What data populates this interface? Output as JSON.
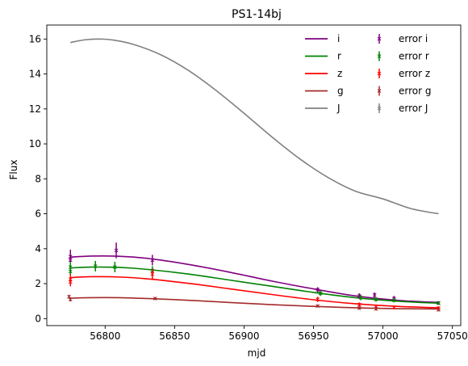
{
  "chart_data": {
    "type": "line",
    "title": "PS1-14bj",
    "xlabel": "mjd",
    "ylabel": "Flux",
    "xlim": [
      56758,
      57056
    ],
    "ylim": [
      -0.4,
      16.8
    ],
    "xticks": [
      56800,
      56850,
      56900,
      56950,
      57000,
      57050
    ],
    "yticks": [
      0,
      2,
      4,
      6,
      8,
      10,
      12,
      14,
      16
    ],
    "grid": false,
    "legend": "top-right",
    "series": [
      {
        "name": "i",
        "color": "#800080",
        "x": [
          56775,
          56790,
          56810,
          56830,
          56860,
          56890,
          56920,
          56950,
          56980,
          57010,
          57040
        ],
        "y": [
          3.52,
          3.58,
          3.57,
          3.45,
          3.1,
          2.65,
          2.15,
          1.7,
          1.3,
          1.05,
          0.92
        ]
      },
      {
        "name": "r",
        "color": "#008000",
        "x": [
          56775,
          56790,
          56810,
          56830,
          56860,
          56890,
          56920,
          56950,
          56980,
          57010,
          57040
        ],
        "y": [
          2.9,
          2.95,
          2.93,
          2.82,
          2.55,
          2.2,
          1.85,
          1.5,
          1.2,
          1.0,
          0.88
        ]
      },
      {
        "name": "z",
        "color": "#ff0000",
        "x": [
          56775,
          56790,
          56810,
          56830,
          56860,
          56890,
          56920,
          56950,
          56980,
          57010,
          57040
        ],
        "y": [
          2.35,
          2.4,
          2.38,
          2.28,
          2.02,
          1.7,
          1.38,
          1.08,
          0.85,
          0.7,
          0.62
        ]
      },
      {
        "name": "g",
        "color": "#a52a2a",
        "x": [
          56775,
          56790,
          56810,
          56830,
          56860,
          56890,
          56920,
          56950,
          56980,
          57010,
          57040
        ],
        "y": [
          1.17,
          1.2,
          1.2,
          1.15,
          1.05,
          0.92,
          0.8,
          0.7,
          0.62,
          0.57,
          0.55
        ]
      },
      {
        "name": "J",
        "color": "#808080",
        "x": [
          56775,
          56785,
          56795,
          56805,
          56820,
          56840,
          56860,
          56880,
          56900,
          56920,
          56940,
          56960,
          56980,
          57000,
          57020,
          57040
        ],
        "y": [
          15.8,
          15.95,
          16.0,
          15.95,
          15.7,
          15.1,
          14.2,
          13.05,
          11.75,
          10.4,
          9.15,
          8.1,
          7.3,
          6.85,
          6.3,
          6.0
        ]
      }
    ],
    "error_series": [
      {
        "name": "error i",
        "color": "#800080",
        "x": [
          56775,
          56775,
          56808,
          56834,
          56953,
          56983,
          56994,
          57008,
          57040
        ],
        "y": [
          3.55,
          3.35,
          3.9,
          3.35,
          1.65,
          1.3,
          1.35,
          1.15,
          0.9
        ],
        "err": [
          0.4,
          0.3,
          0.45,
          0.3,
          0.15,
          0.15,
          0.15,
          0.15,
          0.1
        ]
      },
      {
        "name": "error r",
        "color": "#008000",
        "x": [
          56775,
          56775,
          56793,
          56807,
          56834,
          56955,
          56984,
          56995,
          57008,
          57040
        ],
        "y": [
          2.95,
          2.7,
          3.0,
          2.95,
          2.75,
          1.45,
          1.2,
          1.1,
          1.05,
          0.88
        ],
        "err": [
          0.3,
          0.25,
          0.3,
          0.3,
          0.25,
          0.15,
          0.15,
          0.12,
          0.12,
          0.1
        ]
      },
      {
        "name": "error z",
        "color": "#ff0000",
        "x": [
          56775,
          56775,
          56834,
          56953,
          56983,
          56995,
          57008,
          57040
        ],
        "y": [
          2.25,
          2.1,
          2.55,
          1.1,
          0.8,
          0.7,
          0.65,
          0.6
        ],
        "err": [
          0.3,
          0.25,
          0.3,
          0.15,
          0.12,
          0.1,
          0.1,
          0.1
        ]
      },
      {
        "name": "error g",
        "color": "#a52a2a",
        "x": [
          56774,
          56775,
          56836,
          56953,
          56983,
          56995,
          57040
        ],
        "y": [
          1.25,
          1.1,
          1.15,
          0.72,
          0.6,
          0.55,
          0.5
        ],
        "err": [
          0.12,
          0.12,
          0.08,
          0.08,
          0.08,
          0.08,
          0.08
        ]
      },
      {
        "name": "error J",
        "color": "#808080",
        "x": [],
        "y": [],
        "err": []
      }
    ]
  }
}
